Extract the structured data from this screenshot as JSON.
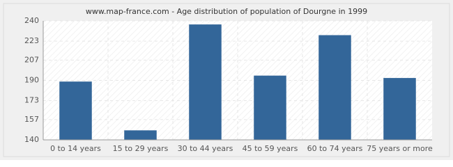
{
  "chart_data": {
    "type": "bar",
    "title": "www.map-france.com - Age distribution of population of Dourgne in 1999",
    "categories": [
      "0 to 14 years",
      "15 to 29 years",
      "30 to 44 years",
      "45 to 59 years",
      "60 to 74 years",
      "75 years or more"
    ],
    "values": [
      189,
      148,
      237,
      194,
      228,
      192
    ],
    "color": "#336699",
    "ylim": [
      140,
      240
    ],
    "yticks": [
      140,
      157,
      173,
      190,
      207,
      223,
      240
    ],
    "grid": true
  }
}
